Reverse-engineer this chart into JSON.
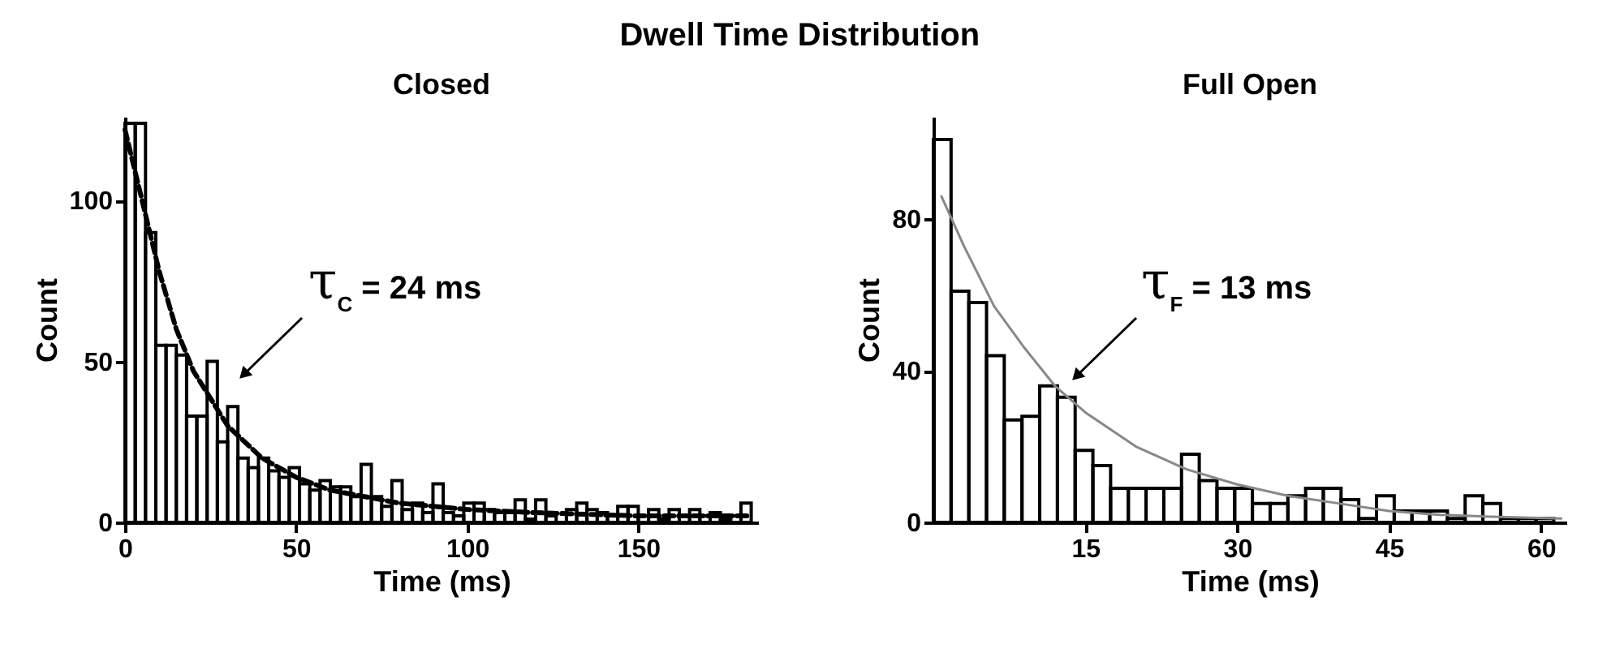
{
  "chart_data": [
    {
      "type": "other",
      "title": "Dwell Time Distribution"
    },
    {
      "type": "histogram",
      "title": "Closed",
      "xlabel": "Time (ms)",
      "ylabel": "Count",
      "color": "#000000",
      "bins": [
        0,
        3,
        6,
        9,
        12,
        15,
        18,
        21,
        24,
        27,
        30,
        33,
        36,
        39,
        42,
        45,
        48,
        51,
        54,
        57,
        60,
        63,
        66,
        69,
        72,
        75,
        78,
        81,
        84,
        87,
        90,
        93,
        96,
        99,
        102,
        105,
        108,
        111,
        114,
        117,
        120,
        123,
        126,
        129,
        132,
        135,
        138,
        141,
        144,
        147,
        150,
        153,
        156,
        159,
        162,
        165,
        168,
        171,
        174,
        177,
        180,
        183
      ],
      "values": [
        124,
        124,
        90,
        55,
        55,
        52,
        33,
        33,
        50,
        25,
        36,
        20,
        17,
        20,
        16,
        14,
        17,
        12,
        10,
        13,
        11,
        11,
        8,
        18,
        8,
        5,
        13,
        4,
        6,
        3,
        12,
        3,
        2,
        6,
        6,
        4,
        3,
        3,
        7,
        1,
        7,
        2,
        0,
        4,
        6,
        4,
        3,
        2,
        5,
        5,
        2,
        4,
        1,
        4,
        2,
        4,
        2,
        3,
        1,
        2,
        6
      ],
      "series": [
        {
          "type": "line",
          "color": "#000000",
          "line_style": "dashed",
          "x": [
            0,
            5,
            10,
            15,
            20,
            30,
            40,
            50,
            60,
            80,
            100,
            120,
            150,
            183
          ],
          "values": [
            122,
            100,
            78,
            60,
            47,
            30,
            20,
            14,
            10,
            6,
            4,
            3,
            2,
            2
          ]
        }
      ],
      "xlim": [
        0,
        185
      ],
      "xticks": [
        0,
        50,
        100,
        150
      ],
      "ylim": [
        0,
        126
      ],
      "yticks": [
        0,
        50,
        100
      ],
      "annotations": [
        "τ$_{C}$ = 24 ms"
      ]
    },
    {
      "type": "histogram",
      "title": "Full Open",
      "xlabel": "Time (ms)",
      "ylabel": "Count",
      "color": "#000000",
      "bins": [
        0,
        1.75,
        3.5,
        5.25,
        7,
        8.75,
        10.5,
        12.25,
        14,
        15.75,
        17.5,
        19.25,
        21,
        22.75,
        24.5,
        26.25,
        28,
        29.75,
        31.5,
        33.25,
        35,
        36.75,
        38.5,
        40.25,
        42,
        43.75,
        45.5,
        47.25,
        49,
        50.75,
        52.5,
        54.25,
        56,
        57.75,
        59.5,
        61.25
      ],
      "values": [
        101,
        61,
        58,
        44,
        27,
        28,
        36,
        33,
        19,
        15,
        9,
        9,
        9,
        9,
        18,
        11,
        9,
        9,
        5,
        5,
        7,
        9,
        9,
        6,
        1,
        7,
        3,
        3,
        3,
        1,
        7,
        5,
        1,
        1,
        1
      ],
      "series": [
        {
          "type": "line",
          "color": "#888888",
          "x": [
            0.8,
            3,
            6,
            9,
            12,
            15,
            20,
            25,
            30,
            35,
            40,
            45,
            50,
            55,
            62
          ],
          "values": [
            86,
            73,
            57,
            46,
            36,
            29,
            20,
            14,
            10,
            7,
            5,
            3,
            2,
            1.5,
            1
          ]
        }
      ],
      "xlim": [
        0,
        62.5
      ],
      "xticks": [
        15,
        30,
        45,
        60
      ],
      "ylim": [
        0,
        107
      ],
      "yticks": [
        0,
        40,
        80
      ],
      "annotations": [
        "τ$_{F}$ = 13 ms"
      ]
    }
  ]
}
